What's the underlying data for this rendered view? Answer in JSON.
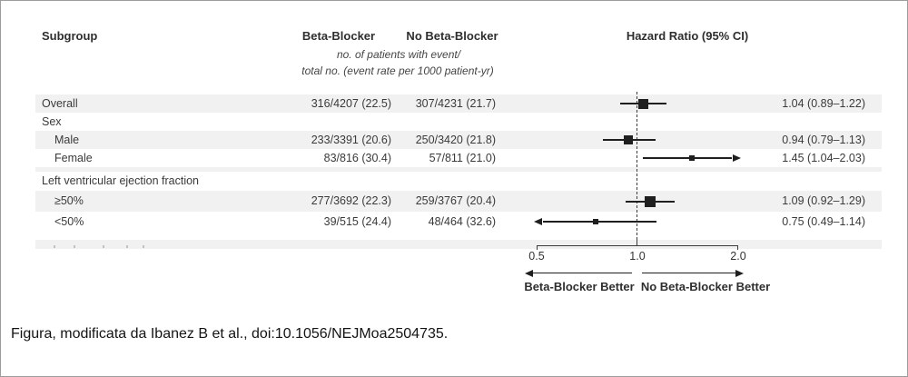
{
  "header": {
    "subgroup_label": "Subgroup",
    "beta_blocker_label": "Beta-Blocker",
    "no_beta_blocker_label": "No Beta-Blocker",
    "hazard_ratio_label": "Hazard Ratio (95% CI)",
    "events_subtitle_line1": "no. of patients with event/",
    "events_subtitle_line2": "total no. (event rate per 1000 patient-yr)"
  },
  "chart_data": {
    "type": "forest",
    "x_axis": {
      "scale": "log2",
      "min": 0.5,
      "max": 2.0,
      "reference": 1.0,
      "tick_labels": [
        "0.5",
        "1.0",
        "2.0"
      ],
      "tick_values": [
        0.5,
        1.0,
        2.0
      ]
    },
    "footer_labels": {
      "left": "Beta-Blocker Better",
      "right": "No Beta-Blocker Better"
    },
    "rows": [
      {
        "label": "Overall",
        "indent": false,
        "shaded": true,
        "header_only": false,
        "beta_blocker": "316/4207 (22.5)",
        "no_beta_blocker": "307/4231 (21.7)",
        "hr": 1.04,
        "ci_low": 0.89,
        "ci_high": 1.22,
        "hr_text": "1.04 (0.89–1.22)",
        "marker_size": 11
      },
      {
        "label": "Sex",
        "indent": false,
        "shaded": false,
        "header_only": true
      },
      {
        "label": "Male",
        "indent": true,
        "shaded": true,
        "header_only": false,
        "beta_blocker": "233/3391 (20.6)",
        "no_beta_blocker": "250/3420 (21.8)",
        "hr": 0.94,
        "ci_low": 0.79,
        "ci_high": 1.13,
        "hr_text": "0.94 (0.79–1.13)",
        "marker_size": 10
      },
      {
        "label": "Female",
        "indent": true,
        "shaded": false,
        "header_only": false,
        "beta_blocker": "83/816 (30.4)",
        "no_beta_blocker": "57/811 (21.0)",
        "hr": 1.45,
        "ci_low": 1.04,
        "ci_high": 2.03,
        "hr_text": "1.45 (1.04–2.03)",
        "marker_size": 6
      },
      {
        "label": "Left ventricular ejection fraction",
        "indent": false,
        "shaded": false,
        "header_only": true
      },
      {
        "label": "≥50%",
        "indent": true,
        "shaded": true,
        "header_only": false,
        "beta_blocker": "277/3692 (22.3)",
        "no_beta_blocker": "259/3767 (20.4)",
        "hr": 1.09,
        "ci_low": 0.92,
        "ci_high": 1.29,
        "hr_text": "1.09 (0.92–1.29)",
        "marker_size": 12
      },
      {
        "label": "<50%",
        "indent": true,
        "shaded": false,
        "header_only": false,
        "beta_blocker": "39/515 (24.4)",
        "no_beta_blocker": "48/464 (32.6)",
        "hr": 0.75,
        "ci_low": 0.49,
        "ci_high": 1.14,
        "hr_text": "0.75 (0.49–1.14)",
        "marker_size": 6
      }
    ]
  },
  "caption": "Figura, modificata da Ibanez B et al., doi:10.1056/NEJMoa2504735."
}
